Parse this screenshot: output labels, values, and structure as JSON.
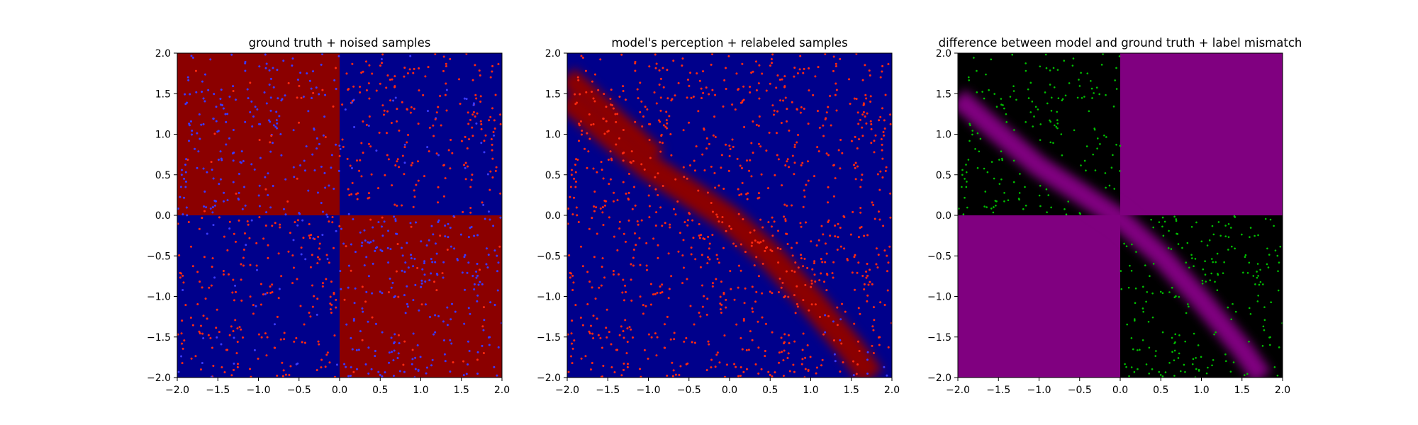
{
  "chart_data": [
    {
      "type": "heatmap",
      "title": "ground truth + noised samples",
      "xlabel": "",
      "ylabel": "",
      "xlim": [
        -2.0,
        2.0
      ],
      "ylim": [
        -2.0,
        2.0
      ],
      "xticks": [
        "−2.0",
        "−1.5",
        "−1.0",
        "−0.5",
        "0.0",
        "0.5",
        "1.0",
        "1.5",
        "2.0"
      ],
      "yticks": [
        "−2.0",
        "−1.5",
        "−1.0",
        "−0.5",
        "0.0",
        "0.5",
        "1.0",
        "1.5",
        "2.0"
      ],
      "grid": false,
      "background_field": {
        "description": "XOR quadrants: red where x*y < 0, blue where x*y > 0",
        "colors": {
          "label_1": "#8b0000",
          "label_0": "#00008b"
        }
      },
      "series": [
        {
          "values": "scatter samples uniform in [-2,2]^2, dot color shows noised label",
          "colors": {
            "red": "#ff2a10",
            "blue": "#3a3aff"
          }
        }
      ]
    },
    {
      "type": "heatmap",
      "title": "model's perception + relabeled samples",
      "xlabel": "",
      "ylabel": "",
      "xlim": [
        -2.0,
        2.0
      ],
      "ylim": [
        -2.0,
        2.0
      ],
      "xticks": [
        "−2.0",
        "−1.5",
        "−1.0",
        "−0.5",
        "0.0",
        "0.5",
        "1.0",
        "1.5",
        "2.0"
      ],
      "yticks": [
        "−2.0",
        "−1.5",
        "−1.0",
        "−0.5",
        "0.0",
        "0.5",
        "1.0",
        "1.5",
        "2.0"
      ],
      "grid": false,
      "background_field": {
        "description": "mostly blue, red band along a curve from (-2,1.75) to (1.75,-2)",
        "band_center": [
          [
            -2.0,
            1.45
          ],
          [
            -1.5,
            1.02
          ],
          [
            -1.0,
            0.6
          ],
          [
            -0.5,
            0.28
          ],
          [
            0.0,
            -0.05
          ],
          [
            0.5,
            -0.5
          ],
          [
            1.0,
            -1.05
          ],
          [
            1.5,
            -1.65
          ],
          [
            1.75,
            -2.0
          ]
        ],
        "colors": {
          "label_1": "#8b0000",
          "label_0": "#00008b"
        }
      },
      "series": [
        {
          "values": "relabeled samples, almost all red",
          "colors": {
            "red": "#ff2a10",
            "blue": "#3a3aff"
          }
        }
      ]
    },
    {
      "type": "heatmap",
      "title": "difference between model and ground truth + label mismatch",
      "xlabel": "",
      "ylabel": "",
      "xlim": [
        -2.0,
        2.0
      ],
      "ylim": [
        -2.0,
        2.0
      ],
      "xticks": [
        "−2.0",
        "−1.5",
        "−1.0",
        "−0.5",
        "0.0",
        "0.5",
        "1.0",
        "1.5",
        "2.0"
      ],
      "yticks": [
        "−2.0",
        "−1.5",
        "−1.0",
        "−0.5",
        "0.0",
        "0.5",
        "1.0",
        "1.5",
        "2.0"
      ],
      "grid": false,
      "background_field": {
        "description": "purple where model differs from ground truth: quadrants x*y > 0 plus the band in x*y < 0 quadrants",
        "colors": {
          "mismatch": "#800080",
          "match": "#000000"
        }
      },
      "series": [
        {
          "values": "green dots mark samples whose labels changed, in quadrants x*y < 0 outside the band",
          "colors": {
            "green": "#00c000"
          }
        }
      ]
    }
  ]
}
